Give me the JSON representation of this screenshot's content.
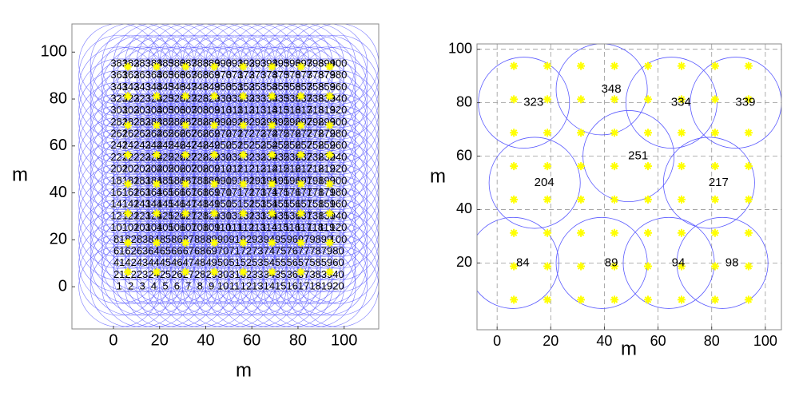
{
  "chart_data": [
    {
      "type": "scatter",
      "xlabel": "m",
      "ylabel": "m",
      "xlim": [
        -18,
        115
      ],
      "ylim": [
        -18,
        112
      ],
      "xticks": [
        0,
        20,
        40,
        60,
        80,
        100
      ],
      "yticks": [
        0,
        20,
        40,
        60,
        80,
        100
      ],
      "label_x": [
        2.5,
        7.5,
        12.5,
        17.5,
        22.5,
        27.5,
        32.5,
        37.5,
        42.5,
        47.5,
        52.5,
        57.5,
        62.5,
        67.5,
        72.5,
        77.5,
        82.5,
        87.5,
        92.5,
        97.5
      ],
      "label_y": [
        0,
        5,
        10,
        15,
        20,
        25,
        30,
        35,
        40,
        45,
        50,
        55,
        60,
        65,
        70,
        75,
        80,
        85,
        90,
        95
      ],
      "labels": [
        1,
        2,
        3,
        4,
        5,
        6,
        7,
        8,
        9,
        10,
        11,
        12,
        13,
        14,
        15,
        16,
        17,
        18,
        19,
        20,
        21,
        22,
        23,
        24,
        25,
        26,
        27,
        28,
        29,
        30,
        31,
        32,
        33,
        34,
        35,
        36,
        37,
        38,
        39,
        40,
        41,
        42,
        43,
        44,
        45,
        46,
        47,
        48,
        49,
        50,
        51,
        52,
        53,
        54,
        55,
        56,
        57,
        58,
        59,
        60,
        61,
        62,
        63,
        64,
        65,
        66,
        67,
        68,
        69,
        70,
        71,
        72,
        73,
        74,
        75,
        76,
        77,
        78,
        79,
        80,
        81,
        82,
        83,
        84,
        85,
        86,
        87,
        88,
        89,
        90,
        91,
        92,
        93,
        94,
        95,
        96,
        97,
        98,
        99,
        100,
        101,
        102,
        103,
        104,
        105,
        106,
        107,
        108,
        109,
        110,
        111,
        112,
        113,
        114,
        115,
        116,
        117,
        118,
        119,
        120,
        121,
        122,
        123,
        124,
        125,
        126,
        127,
        128,
        129,
        130,
        131,
        132,
        133,
        134,
        135,
        136,
        137,
        138,
        139,
        140,
        141,
        142,
        143,
        144,
        145,
        146,
        147,
        148,
        149,
        150,
        151,
        152,
        153,
        154,
        155,
        156,
        157,
        158,
        159,
        160,
        161,
        162,
        163,
        164,
        165,
        166,
        167,
        168,
        169,
        170,
        171,
        172,
        173,
        174,
        175,
        176,
        177,
        178,
        179,
        180,
        181,
        182,
        183,
        184,
        185,
        186,
        187,
        188,
        189,
        190,
        191,
        192,
        193,
        194,
        195,
        196,
        197,
        198,
        199,
        200,
        201,
        202,
        203,
        204,
        205,
        206,
        207,
        208,
        209,
        210,
        211,
        212,
        213,
        214,
        215,
        216,
        217,
        218,
        219,
        220,
        221,
        222,
        223,
        224,
        225,
        226,
        227,
        228,
        229,
        230,
        231,
        232,
        233,
        234,
        235,
        236,
        237,
        238,
        239,
        240,
        241,
        242,
        243,
        244,
        245,
        246,
        247,
        248,
        249,
        250,
        251,
        252,
        253,
        254,
        255,
        256,
        257,
        258,
        259,
        260,
        261,
        262,
        263,
        264,
        265,
        266,
        267,
        268,
        269,
        270,
        271,
        272,
        273,
        274,
        275,
        276,
        277,
        278,
        279,
        280,
        281,
        282,
        283,
        284,
        285,
        286,
        287,
        288,
        289,
        290,
        291,
        292,
        293,
        294,
        295,
        296,
        297,
        298,
        299,
        300,
        301,
        302,
        303,
        304,
        305,
        306,
        307,
        308,
        309,
        310,
        311,
        312,
        313,
        314,
        315,
        316,
        317,
        318,
        319,
        320,
        321,
        322,
        323,
        324,
        325,
        326,
        327,
        328,
        329,
        330,
        331,
        332,
        333,
        334,
        335,
        336,
        337,
        338,
        339,
        340,
        341,
        342,
        343,
        344,
        345,
        346,
        347,
        348,
        349,
        350,
        351,
        352,
        353,
        354,
        355,
        356,
        357,
        358,
        359,
        360,
        361,
        362,
        363,
        364,
        365,
        366,
        367,
        368,
        369,
        370,
        371,
        372,
        373,
        374,
        375,
        376,
        377,
        378,
        379,
        380,
        381,
        382,
        383,
        384,
        385,
        386,
        387,
        388,
        389,
        390,
        391,
        392,
        393,
        394,
        395,
        396,
        397,
        398,
        399,
        400
      ],
      "radius": 17.5,
      "circle_color": "#5a5aff",
      "color": "#ffff00",
      "grid": false,
      "x": [
        6.25,
        18.75,
        31.25,
        43.75,
        56.25,
        68.75,
        81.25,
        93.75,
        6.25,
        18.75,
        31.25,
        43.75,
        56.25,
        68.75,
        81.25,
        93.75,
        6.25,
        18.75,
        31.25,
        43.75,
        56.25,
        68.75,
        81.25,
        93.75,
        6.25,
        18.75,
        31.25,
        43.75,
        56.25,
        68.75,
        81.25,
        93.75,
        6.25,
        18.75,
        31.25,
        43.75,
        56.25,
        68.75,
        81.25,
        93.75,
        6.25,
        18.75,
        31.25,
        43.75,
        56.25,
        68.75,
        81.25,
        93.75,
        6.25,
        18.75,
        31.25,
        43.75,
        56.25,
        68.75,
        81.25,
        93.75,
        6.25,
        18.75,
        31.25,
        43.75,
        56.25,
        68.75,
        81.25,
        93.75
      ],
      "y": [
        6.25,
        6.25,
        6.25,
        6.25,
        6.25,
        6.25,
        6.25,
        6.25,
        18.75,
        18.75,
        18.75,
        18.75,
        18.75,
        18.75,
        18.75,
        18.75,
        31.25,
        31.25,
        31.25,
        31.25,
        31.25,
        31.25,
        31.25,
        31.25,
        43.75,
        43.75,
        43.75,
        43.75,
        43.75,
        43.75,
        43.75,
        43.75,
        56.25,
        56.25,
        56.25,
        56.25,
        56.25,
        56.25,
        56.25,
        56.25,
        68.75,
        68.75,
        68.75,
        68.75,
        68.75,
        68.75,
        68.75,
        68.75,
        81.25,
        81.25,
        81.25,
        81.25,
        81.25,
        81.25,
        81.25,
        81.25,
        93.75,
        93.75,
        93.75,
        93.75,
        93.75,
        93.75,
        93.75,
        93.75
      ]
    },
    {
      "type": "scatter",
      "xlabel": "m",
      "ylabel": "m",
      "xlim": [
        -7.5,
        106
      ],
      "ylim": [
        -5,
        102
      ],
      "xticks": [
        0,
        20,
        40,
        60,
        80,
        100
      ],
      "yticks": [
        20,
        40,
        60,
        80,
        100
      ],
      "grid": true,
      "color": "#ffff00",
      "circle_color": "#5a5aff",
      "radius": 17,
      "circles": {
        "x": [
          10,
          39,
          65,
          89,
          14,
          49,
          79,
          6,
          39,
          64,
          84
        ],
        "y": [
          80,
          85,
          80,
          80,
          50,
          60,
          50,
          20,
          20,
          20,
          20
        ],
        "labels": [
          323,
          348,
          334,
          339,
          204,
          251,
          217,
          84,
          89,
          94,
          98
        ]
      },
      "x": [
        6.25,
        18.75,
        31.25,
        43.75,
        56.25,
        68.75,
        81.25,
        93.75,
        6.25,
        18.75,
        31.25,
        43.75,
        56.25,
        68.75,
        81.25,
        93.75,
        6.25,
        18.75,
        31.25,
        43.75,
        56.25,
        68.75,
        81.25,
        93.75,
        6.25,
        18.75,
        31.25,
        43.75,
        56.25,
        68.75,
        81.25,
        93.75,
        6.25,
        18.75,
        31.25,
        43.75,
        56.25,
        68.75,
        81.25,
        93.75,
        6.25,
        18.75,
        31.25,
        43.75,
        56.25,
        68.75,
        81.25,
        93.75,
        6.25,
        18.75,
        31.25,
        43.75,
        56.25,
        68.75,
        81.25,
        93.75,
        6.25,
        18.75,
        31.25,
        43.75,
        56.25,
        68.75,
        81.25,
        93.75
      ],
      "y": [
        6.25,
        6.25,
        6.25,
        6.25,
        6.25,
        6.25,
        6.25,
        6.25,
        18.75,
        18.75,
        18.75,
        18.75,
        18.75,
        18.75,
        18.75,
        18.75,
        31.25,
        31.25,
        31.25,
        31.25,
        31.25,
        31.25,
        31.25,
        31.25,
        43.75,
        43.75,
        43.75,
        43.75,
        43.75,
        43.75,
        43.75,
        43.75,
        56.25,
        56.25,
        56.25,
        56.25,
        56.25,
        56.25,
        56.25,
        56.25,
        68.75,
        68.75,
        68.75,
        68.75,
        68.75,
        68.75,
        68.75,
        68.75,
        81.25,
        81.25,
        81.25,
        81.25,
        81.25,
        81.25,
        81.25,
        81.25,
        93.75,
        93.75,
        93.75,
        93.75,
        93.75,
        93.75,
        93.75,
        93.75
      ]
    }
  ]
}
